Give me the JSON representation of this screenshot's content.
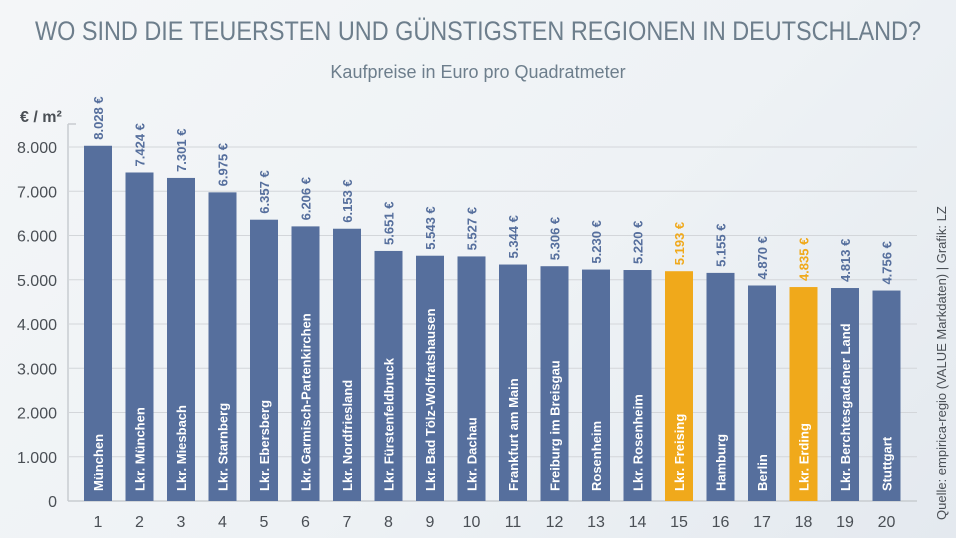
{
  "chart_data": {
    "type": "bar",
    "title": "WO SIND DIE TEUERSTEN UND GÜNSTIGSTEN REGIONEN IN DEUTSCHLAND?",
    "subtitle": "Kaufpreise in Euro pro Quadratmeter",
    "ylabel": "€ / m²",
    "ylim": [
      0,
      8000
    ],
    "yticks": [
      "0",
      "1.000",
      "2.000",
      "3.000",
      "4.000",
      "5.000",
      "6.000",
      "7.000",
      "8.000"
    ],
    "ytick_values": [
      0,
      1000,
      2000,
      3000,
      4000,
      5000,
      6000,
      7000,
      8000
    ],
    "grid": true,
    "ranks": [
      "1",
      "2",
      "3",
      "4",
      "5",
      "6",
      "7",
      "8",
      "9",
      "10",
      "11",
      "12",
      "13",
      "14",
      "15",
      "16",
      "17",
      "18",
      "19",
      "20"
    ],
    "categories": [
      "München",
      "Lkr. München",
      "Lkr. Miesbach",
      "Lkr. Starnberg",
      "Lkr. Ebersberg",
      "Lkr. Garmisch-Partenkirchen",
      "Lkr. Nordfriesland",
      "Lkr. Fürstenfeldbruck",
      "Lkr. Bad Tölz-Wolfratshausen",
      "Lkr. Dachau",
      "Frankfurt am Main",
      "Freiburg im Breisgau",
      "Rosenheim",
      "Lkr. Rosenheim",
      "Lkr. Freising",
      "Hamburg",
      "Berlin",
      "Lkr. Erding",
      "Lkr. Berchtesgadener Land",
      "Stuttgart"
    ],
    "values": [
      8028,
      7424,
      7301,
      6975,
      6357,
      6206,
      6153,
      5651,
      5543,
      5527,
      5344,
      5306,
      5230,
      5220,
      5193,
      5155,
      4870,
      4835,
      4813,
      4756
    ],
    "value_labels": [
      "8.028 €",
      "7.424 €",
      "7.301 €",
      "6.975 €",
      "6.357 €",
      "6.206 €",
      "6.153 €",
      "5.651 €",
      "5.543 €",
      "5.527 €",
      "5.344 €",
      "5.306 €",
      "5.230 €",
      "5.220 €",
      "5.193 €",
      "5.155 €",
      "4.870 €",
      "4.835 €",
      "4.813 €",
      "4.756 €"
    ],
    "highlighted": [
      15,
      18
    ],
    "colors": {
      "bar": "#566f9d",
      "highlight": "#f0a91b",
      "label_default": "#566f9d",
      "label_highlight": "#f0a91b",
      "grid": "#d3d6da"
    },
    "source": "Quelle: empirica-regio (VALUE Markdaten) | Grafik: LZ"
  }
}
